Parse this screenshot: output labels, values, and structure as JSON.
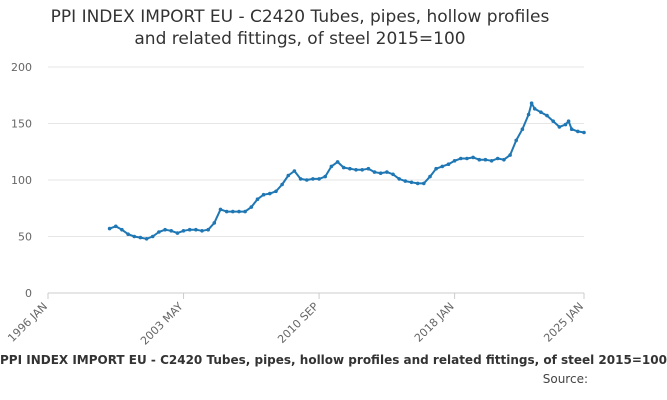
{
  "chart_data": {
    "type": "line",
    "title_line1": "PPI INDEX IMPORT EU - C2420 Tubes, pipes, hollow profiles",
    "title_line2": "and related fittings, of steel 2015=100",
    "x_ticks": [
      "1996 JAN",
      "2003 MAY",
      "2010 SEP",
      "2018 JAN",
      "2025 JAN"
    ],
    "y_ticks": [
      0,
      50,
      100,
      150,
      200
    ],
    "ylim": [
      0,
      200
    ],
    "grid": true,
    "legend_position": "bottom",
    "series": [
      {
        "name": "PPI INDEX IMPORT EU - C2420 Tubes, pipes, hollow profiles and related fittings, of steel 2015=100",
        "color": "#1f77b4",
        "points": [
          [
            "1999-05",
            57
          ],
          [
            "1999-09",
            59
          ],
          [
            "2000-01",
            56
          ],
          [
            "2000-05",
            52
          ],
          [
            "2000-09",
            50
          ],
          [
            "2001-01",
            49
          ],
          [
            "2001-05",
            48
          ],
          [
            "2001-09",
            50
          ],
          [
            "2002-01",
            54
          ],
          [
            "2002-05",
            56
          ],
          [
            "2002-09",
            55
          ],
          [
            "2003-01",
            53
          ],
          [
            "2003-05",
            55
          ],
          [
            "2003-09",
            56
          ],
          [
            "2004-01",
            56
          ],
          [
            "2004-05",
            55
          ],
          [
            "2004-09",
            56
          ],
          [
            "2005-01",
            62
          ],
          [
            "2005-05",
            74
          ],
          [
            "2005-09",
            72
          ],
          [
            "2006-01",
            72
          ],
          [
            "2006-05",
            72
          ],
          [
            "2006-09",
            72
          ],
          [
            "2007-01",
            76
          ],
          [
            "2007-05",
            83
          ],
          [
            "2007-09",
            87
          ],
          [
            "2008-01",
            88
          ],
          [
            "2008-05",
            90
          ],
          [
            "2008-09",
            96
          ],
          [
            "2009-01",
            104
          ],
          [
            "2009-05",
            108
          ],
          [
            "2009-09",
            101
          ],
          [
            "2010-01",
            100
          ],
          [
            "2010-05",
            101
          ],
          [
            "2010-09",
            101
          ],
          [
            "2011-01",
            103
          ],
          [
            "2011-05",
            112
          ],
          [
            "2011-09",
            116
          ],
          [
            "2012-01",
            111
          ],
          [
            "2012-05",
            110
          ],
          [
            "2012-09",
            109
          ],
          [
            "2013-01",
            109
          ],
          [
            "2013-05",
            110
          ],
          [
            "2013-09",
            107
          ],
          [
            "2014-01",
            106
          ],
          [
            "2014-05",
            107
          ],
          [
            "2014-09",
            105
          ],
          [
            "2015-01",
            101
          ],
          [
            "2015-05",
            99
          ],
          [
            "2015-09",
            98
          ],
          [
            "2016-01",
            97
          ],
          [
            "2016-05",
            97
          ],
          [
            "2016-09",
            103
          ],
          [
            "2017-01",
            110
          ],
          [
            "2017-05",
            112
          ],
          [
            "2017-09",
            114
          ],
          [
            "2018-01",
            117
          ],
          [
            "2018-05",
            119
          ],
          [
            "2018-09",
            119
          ],
          [
            "2019-01",
            120
          ],
          [
            "2019-05",
            118
          ],
          [
            "2019-09",
            118
          ],
          [
            "2020-01",
            117
          ],
          [
            "2020-05",
            119
          ],
          [
            "2020-09",
            118
          ],
          [
            "2021-01",
            122
          ],
          [
            "2021-05",
            135
          ],
          [
            "2021-09",
            145
          ],
          [
            "2022-01",
            158
          ],
          [
            "2022-03",
            168
          ],
          [
            "2022-05",
            163
          ],
          [
            "2022-09",
            160
          ],
          [
            "2023-01",
            157
          ],
          [
            "2023-05",
            152
          ],
          [
            "2023-09",
            147
          ],
          [
            "2024-01",
            149
          ],
          [
            "2024-03",
            152
          ],
          [
            "2024-05",
            145
          ],
          [
            "2024-09",
            143
          ],
          [
            "2025-01",
            142
          ]
        ]
      }
    ]
  },
  "legend_text": "PPI INDEX IMPORT EU - C2420 Tubes, pipes, hollow profiles and related fittings, of steel 2015=100",
  "source_label": "Source:"
}
